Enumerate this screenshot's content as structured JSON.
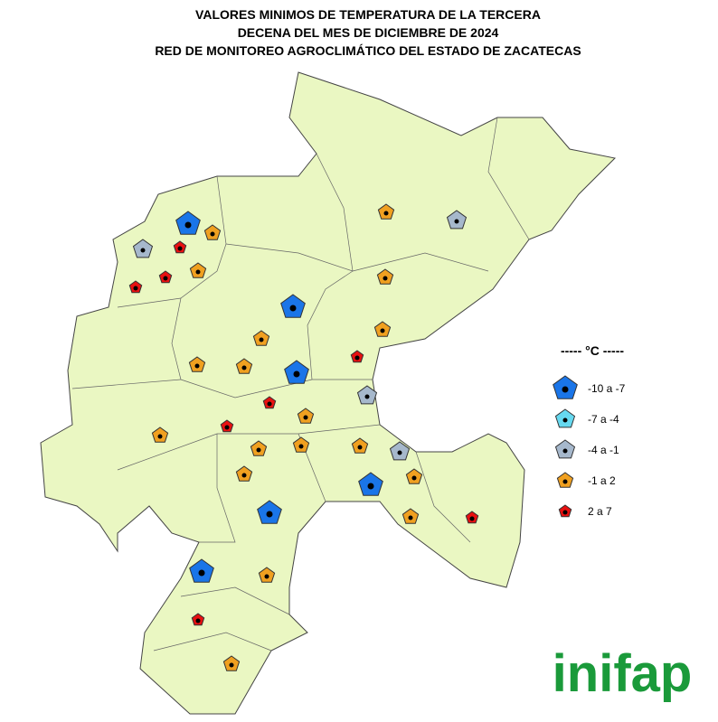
{
  "header": {
    "title_lines": [
      "VALORES MINIMOS DE TEMPERATURA DE LA TERCERA",
      "DECENA DEL MES DE DICIEMBRE DE 2024",
      "RED DE MONITOREO AGROCLIMÁTICO DEL ESTADO DE ZACATECAS"
    ]
  },
  "legend": {
    "title": "----- °C -----",
    "items": [
      "-10 a -7",
      "-7 a -4",
      "-4 a -1",
      "-1 a 2",
      "2 a 7"
    ]
  },
  "logo": "inifap"
}
